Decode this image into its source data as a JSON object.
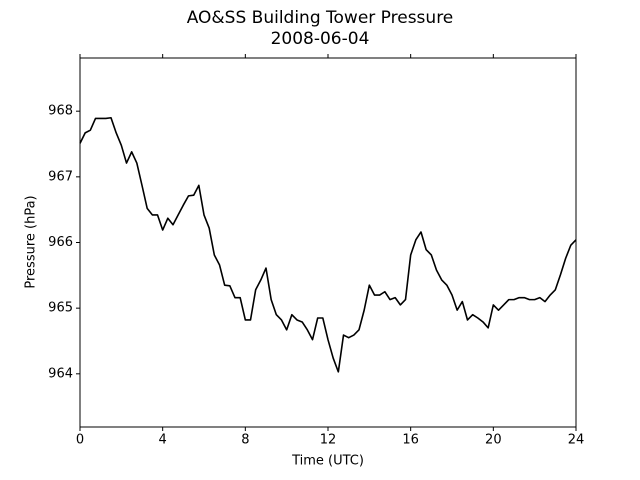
{
  "chart_data": {
    "type": "line",
    "title": "AO&SS Building Tower Pressure",
    "subtitle": "2008-06-04",
    "x_label": "Time (UTC)",
    "y_label": "Pressure (hPa)",
    "color": "#000000",
    "x": [
      0,
      0.25,
      0.5,
      0.75,
      1,
      1.25,
      1.5,
      1.75,
      2,
      2.25,
      2.5,
      2.75,
      3,
      3.25,
      3.5,
      3.75,
      4,
      4.25,
      4.5,
      4.75,
      5,
      5.25,
      5.5,
      5.75,
      6,
      6.25,
      6.5,
      6.75,
      7,
      7.25,
      7.5,
      7.75,
      8,
      8.25,
      8.5,
      8.75,
      9,
      9.25,
      9.5,
      9.75,
      10,
      10.25,
      10.5,
      10.75,
      11,
      11.25,
      11.5,
      11.75,
      12,
      12.25,
      12.5,
      12.75,
      13,
      13.25,
      13.5,
      13.75,
      14,
      14.25,
      14.5,
      14.75,
      15,
      15.25,
      15.5,
      15.75,
      16,
      16.25,
      16.5,
      16.75,
      17,
      17.25,
      17.5,
      17.75,
      18,
      18.25,
      18.5,
      18.75,
      19,
      19.25,
      19.5,
      19.75,
      20,
      20.25,
      20.5,
      20.75,
      21,
      21.25,
      21.5,
      21.75,
      22,
      22.25,
      22.5,
      22.75,
      23,
      23.25,
      23.5,
      23.75,
      24
    ],
    "values": [
      967.51,
      967.67,
      967.71,
      967.89,
      967.89,
      967.89,
      967.9,
      967.67,
      967.48,
      967.21,
      967.38,
      967.21,
      966.87,
      966.52,
      966.42,
      966.42,
      966.19,
      966.37,
      966.27,
      966.42,
      966.57,
      966.71,
      966.72,
      966.87,
      966.42,
      966.22,
      965.81,
      965.66,
      965.35,
      965.34,
      965.16,
      965.16,
      964.82,
      964.82,
      965.28,
      965.43,
      965.61,
      965.13,
      964.9,
      964.82,
      964.67,
      964.9,
      964.82,
      964.79,
      964.67,
      964.52,
      964.85,
      964.85,
      964.52,
      964.24,
      964.03,
      964.59,
      964.55,
      964.59,
      964.67,
      964.97,
      965.35,
      965.2,
      965.2,
      965.25,
      965.13,
      965.16,
      965.05,
      965.13,
      965.81,
      966.04,
      966.16,
      965.89,
      965.81,
      965.58,
      965.43,
      965.35,
      965.2,
      964.97,
      965.1,
      964.82,
      964.9,
      964.85,
      964.79,
      964.7,
      965.05,
      964.97,
      965.05,
      965.13,
      965.13,
      965.16,
      965.16,
      965.13,
      965.13,
      965.16,
      965.1,
      965.2,
      965.28,
      965.51,
      965.76,
      965.96,
      966.04
    ],
    "xlim": [
      0,
      24
    ],
    "xticks": [
      0,
      4,
      8,
      12,
      16,
      20,
      24
    ],
    "ylim": [
      963.19,
      968.81
    ],
    "yticks": [
      964,
      965,
      966,
      967,
      968
    ],
    "grid": false
  }
}
